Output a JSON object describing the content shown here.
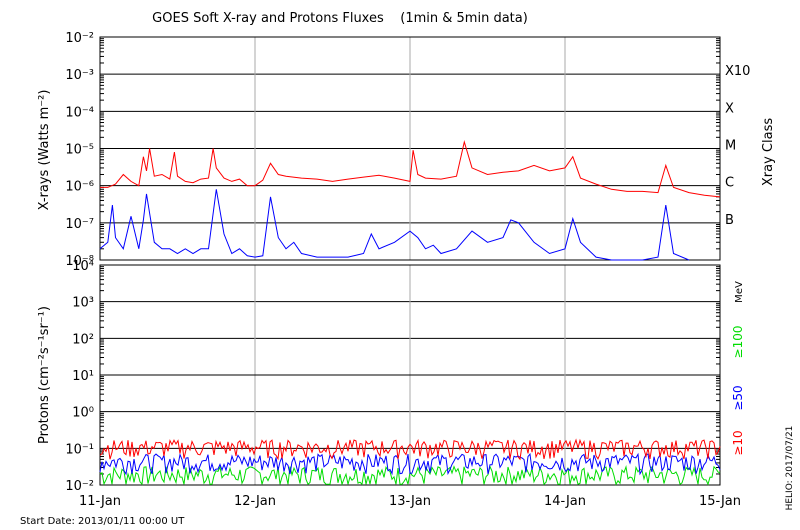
{
  "title": "GOES Soft X-ray and Protons Fluxes    (1min & 5min data)",
  "start_date": "Start Date: 2013/01/11 00:00 UT",
  "credit": "HELIO: 2017/07/21",
  "colors": {
    "xray_long": "#ff0000",
    "xray_short": "#0000ff",
    "p10": "#ff0000",
    "p50": "#0000ff",
    "p100": "#00dd00",
    "grid": "#000000",
    "day_line": "#aaaaaa"
  },
  "chart_data": [
    {
      "type": "line",
      "ylabel": "X-rays (Watts m⁻²)",
      "yscale": "log",
      "ylim": [
        1e-08,
        0.01
      ],
      "y_ticks": [
        "10⁻⁸",
        "10⁻⁷",
        "10⁻⁶",
        "10⁻⁵",
        "10⁻⁴",
        "10⁻³",
        "10⁻²"
      ],
      "y_tick_exponents": [
        -8,
        -7,
        -6,
        -5,
        -4,
        -3,
        -2
      ],
      "right_axis_title": "Xray Class",
      "class_labels": [
        {
          "label": "B",
          "exp": -7
        },
        {
          "label": "C",
          "exp": -6
        },
        {
          "label": "M",
          "exp": -5
        },
        {
          "label": "X",
          "exp": -4
        },
        {
          "label": "X10",
          "exp": -3
        }
      ],
      "x_ticks": [
        "11-Jan",
        "12-Jan",
        "13-Jan",
        "14-Jan",
        "15-Jan"
      ],
      "xlim_days": [
        0,
        4
      ],
      "series": [
        {
          "color_key": "xray_long",
          "x": [
            0,
            0.05,
            0.1,
            0.15,
            0.2,
            0.25,
            0.28,
            0.3,
            0.32,
            0.35,
            0.4,
            0.45,
            0.48,
            0.5,
            0.55,
            0.6,
            0.65,
            0.7,
            0.73,
            0.75,
            0.8,
            0.85,
            0.9,
            0.95,
            1.0,
            1.05,
            1.1,
            1.15,
            1.2,
            1.3,
            1.4,
            1.5,
            1.6,
            1.7,
            1.8,
            1.9,
            2.0,
            2.02,
            2.05,
            2.1,
            2.2,
            2.3,
            2.35,
            2.4,
            2.5,
            2.6,
            2.7,
            2.8,
            2.9,
            3.0,
            3.05,
            3.1,
            3.2,
            3.3,
            3.4,
            3.5,
            3.6,
            3.65,
            3.7,
            3.8,
            3.9,
            4.0
          ],
          "y": [
            9e-07,
            9e-07,
            1.1e-06,
            2e-06,
            1.3e-06,
            1e-06,
            6e-06,
            2.5e-06,
            1e-05,
            1.8e-06,
            2e-06,
            1.5e-06,
            8e-06,
            1.8e-06,
            1.3e-06,
            1.2e-06,
            1.5e-06,
            1.6e-06,
            1e-05,
            3e-06,
            1.6e-06,
            1.3e-06,
            1.5e-06,
            1e-06,
            1e-06,
            1.4e-06,
            4e-06,
            2e-06,
            1.8e-06,
            1.6e-06,
            1.5e-06,
            1.3e-06,
            1.5e-06,
            1.7e-06,
            1.9e-06,
            1.6e-06,
            1.3e-06,
            9e-06,
            2e-06,
            1.6e-06,
            1.5e-06,
            1.8e-06,
            1.5e-05,
            3e-06,
            2e-06,
            2.3e-06,
            2.5e-06,
            3.5e-06,
            2.5e-06,
            3e-06,
            6e-06,
            1.6e-06,
            1.1e-06,
            8e-07,
            7e-07,
            7e-07,
            6.5e-07,
            3.5e-06,
            9e-07,
            6.5e-07,
            5.5e-07,
            5e-07
          ]
        },
        {
          "color_key": "xray_short",
          "x": [
            0,
            0.05,
            0.08,
            0.1,
            0.15,
            0.2,
            0.25,
            0.28,
            0.3,
            0.35,
            0.4,
            0.45,
            0.5,
            0.55,
            0.6,
            0.65,
            0.7,
            0.75,
            0.8,
            0.85,
            0.9,
            0.95,
            1.0,
            1.05,
            1.1,
            1.15,
            1.2,
            1.25,
            1.3,
            1.4,
            1.5,
            1.6,
            1.7,
            1.75,
            1.8,
            1.9,
            2.0,
            2.05,
            2.1,
            2.15,
            2.2,
            2.3,
            2.4,
            2.5,
            2.6,
            2.65,
            2.7,
            2.8,
            2.9,
            3.0,
            3.05,
            3.1,
            3.2,
            3.3,
            3.4,
            3.5,
            3.6,
            3.65,
            3.7,
            3.8
          ],
          "y": [
            2e-08,
            3e-08,
            3e-07,
            4e-08,
            2e-08,
            1.5e-07,
            2e-08,
            1.2e-07,
            6e-07,
            3e-08,
            2e-08,
            2e-08,
            1.5e-08,
            2e-08,
            1.5e-08,
            2e-08,
            2e-08,
            8e-07,
            5e-08,
            1.5e-08,
            2e-08,
            1.3e-08,
            1.2e-08,
            1.3e-08,
            5e-07,
            4e-08,
            2e-08,
            3e-08,
            1.5e-08,
            1.2e-08,
            1.2e-08,
            1.2e-08,
            1.5e-08,
            5e-08,
            2e-08,
            3e-08,
            6e-08,
            4e-08,
            2e-08,
            2.5e-08,
            1.5e-08,
            2e-08,
            6e-08,
            3e-08,
            4e-08,
            1.2e-07,
            1e-07,
            3e-08,
            1.5e-08,
            2e-08,
            1.3e-07,
            3e-08,
            1.2e-08,
            1e-08,
            1e-08,
            1e-08,
            1.2e-08,
            3e-07,
            1.5e-08,
            1e-08
          ]
        }
      ]
    },
    {
      "type": "line",
      "ylabel": "Protons (cm⁻²s⁻¹sr⁻¹)",
      "yscale": "log",
      "ylim": [
        0.01,
        10000
      ],
      "y_ticks": [
        "10⁻²",
        "10⁻¹",
        "10⁰",
        "10¹",
        "10²",
        "10³",
        "10⁴"
      ],
      "y_tick_exponents": [
        -2,
        -1,
        0,
        1,
        2,
        3,
        4
      ],
      "threshold": 10,
      "units": "MeV",
      "x_ticks": [
        "11-Jan",
        "12-Jan",
        "13-Jan",
        "14-Jan",
        "15-Jan"
      ],
      "series": [
        {
          "name": "≥10",
          "color_key": "p10",
          "base": 0.11,
          "spread": 0.06
        },
        {
          "name": "≥50",
          "color_key": "p50",
          "base": 0.045,
          "spread": 0.025
        },
        {
          "name": "≥100",
          "color_key": "p100",
          "base": 0.02,
          "spread": 0.012
        }
      ]
    }
  ]
}
